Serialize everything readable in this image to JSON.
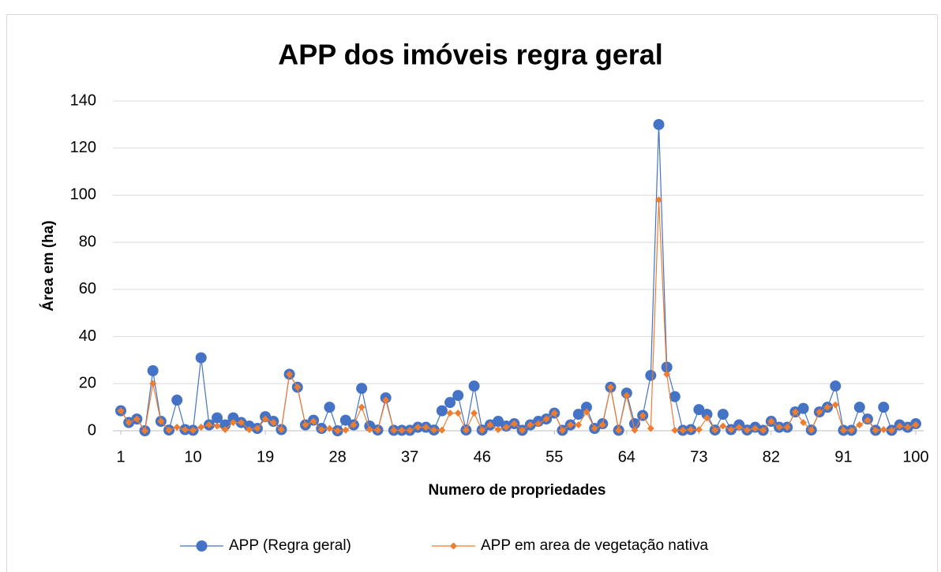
{
  "chart_data": {
    "type": "line",
    "title": "APP dos imóveis regra geral",
    "x_label": "Numero de propriedades",
    "y_label": "Área em (ha)",
    "x": [
      1,
      2,
      3,
      4,
      5,
      6,
      7,
      8,
      9,
      10,
      11,
      12,
      13,
      14,
      15,
      16,
      17,
      18,
      19,
      20,
      21,
      22,
      23,
      24,
      25,
      26,
      27,
      28,
      29,
      30,
      31,
      32,
      33,
      34,
      35,
      36,
      37,
      38,
      39,
      40,
      41,
      42,
      43,
      44,
      45,
      46,
      47,
      48,
      49,
      50,
      51,
      52,
      53,
      54,
      55,
      56,
      57,
      58,
      59,
      60,
      61,
      62,
      63,
      64,
      65,
      66,
      67,
      68,
      69,
      70,
      71,
      72,
      73,
      74,
      75,
      76,
      77,
      78,
      79,
      80,
      81,
      82,
      83,
      84,
      85,
      86,
      87,
      88,
      89,
      90,
      91,
      92,
      93,
      94,
      95,
      96,
      97,
      98,
      99,
      100
    ],
    "xlim": [
      1,
      100
    ],
    "xticks": [
      1,
      10,
      19,
      28,
      37,
      46,
      55,
      64,
      73,
      82,
      91,
      100
    ],
    "ylim": [
      0,
      140
    ],
    "yticks": [
      0,
      20,
      40,
      60,
      80,
      100,
      120,
      140
    ],
    "grid": true,
    "legend": "bottom",
    "series": [
      {
        "name": "APP (Regra geral)",
        "color": "#4472c4",
        "marker": "circle",
        "values": [
          8.5,
          3.5,
          5,
          0,
          25.5,
          4,
          0.3,
          13,
          0.5,
          0.2,
          31,
          2.5,
          5.5,
          2.5,
          5.5,
          3.5,
          2,
          1,
          6,
          4,
          0.5,
          24,
          18.5,
          2.5,
          4.5,
          1,
          10,
          0,
          4.5,
          2.5,
          18,
          2,
          0.3,
          14,
          0.2,
          0.2,
          0.2,
          1.5,
          1.5,
          0.3,
          8.5,
          12,
          15,
          0.3,
          19,
          0.3,
          2.5,
          4,
          2,
          3,
          0.2,
          2.5,
          4,
          5,
          7.5,
          0.2,
          2.5,
          7,
          10,
          1,
          3,
          18.5,
          0.2,
          16,
          3,
          6.5,
          23.5,
          130,
          27,
          14.5,
          0.2,
          0.5,
          9,
          7,
          0.3,
          7,
          0.5,
          2.5,
          0.3,
          1.5,
          0.2,
          4,
          1.5,
          1.5,
          8,
          9.5,
          0.3,
          8,
          10,
          19,
          0.2,
          0.2,
          10,
          5,
          0.2,
          10,
          0.2,
          2.5,
          1.5,
          3
        ]
      },
      {
        "name": "APP em area de vegetação nativa",
        "color": "#ed7d31",
        "marker": "diamond",
        "values": [
          8.5,
          3.5,
          5,
          0,
          20,
          4,
          0.3,
          1.5,
          0.5,
          0.2,
          1.5,
          2.5,
          2,
          0.5,
          3.5,
          3.5,
          0.5,
          1,
          5,
          3.5,
          0.5,
          24,
          18.5,
          2.5,
          4,
          0.5,
          1,
          0,
          0.3,
          2.5,
          10,
          0.5,
          0.3,
          13,
          0.2,
          0.2,
          0.2,
          1.5,
          1.5,
          0.3,
          0.3,
          7.5,
          7.5,
          0.3,
          7.5,
          0.3,
          2.5,
          0.5,
          1.5,
          3,
          0.2,
          2.5,
          3,
          5,
          7.5,
          0.2,
          2.5,
          2.5,
          8,
          1,
          2.5,
          18.5,
          0.2,
          15,
          0.3,
          6.5,
          1,
          98,
          24,
          0.2,
          0.2,
          0.5,
          0.5,
          5.5,
          0.3,
          2,
          0.5,
          1.5,
          0.3,
          1,
          0.2,
          4,
          1.5,
          1.5,
          8,
          3.5,
          0.3,
          8,
          10,
          11,
          0.2,
          0.2,
          2.5,
          4.5,
          0.2,
          0.5,
          0.2,
          2,
          1.5,
          2.5
        ]
      }
    ]
  }
}
